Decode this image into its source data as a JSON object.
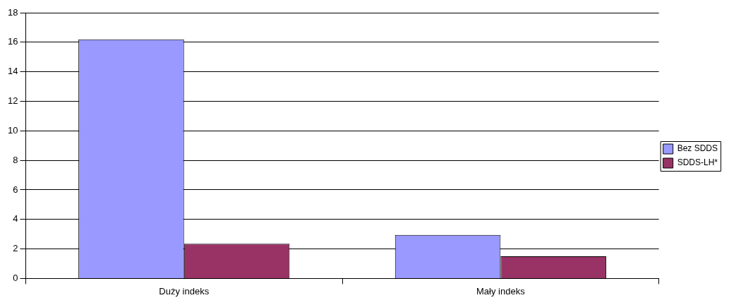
{
  "chart_data": {
    "type": "bar",
    "categories": [
      "Duży indeks",
      "Mały indeks"
    ],
    "series": [
      {
        "name": "Bez SDDS",
        "color": "#9999ff",
        "values": [
          16.2,
          2.95
        ]
      },
      {
        "name": "SDDS-LH*",
        "color": "#993366",
        "values": [
          2.35,
          1.5
        ]
      }
    ],
    "ylim": [
      0,
      18
    ],
    "yticks": [
      0,
      2,
      4,
      6,
      8,
      10,
      12,
      14,
      16,
      18
    ],
    "grid": "y",
    "legend": "right"
  }
}
